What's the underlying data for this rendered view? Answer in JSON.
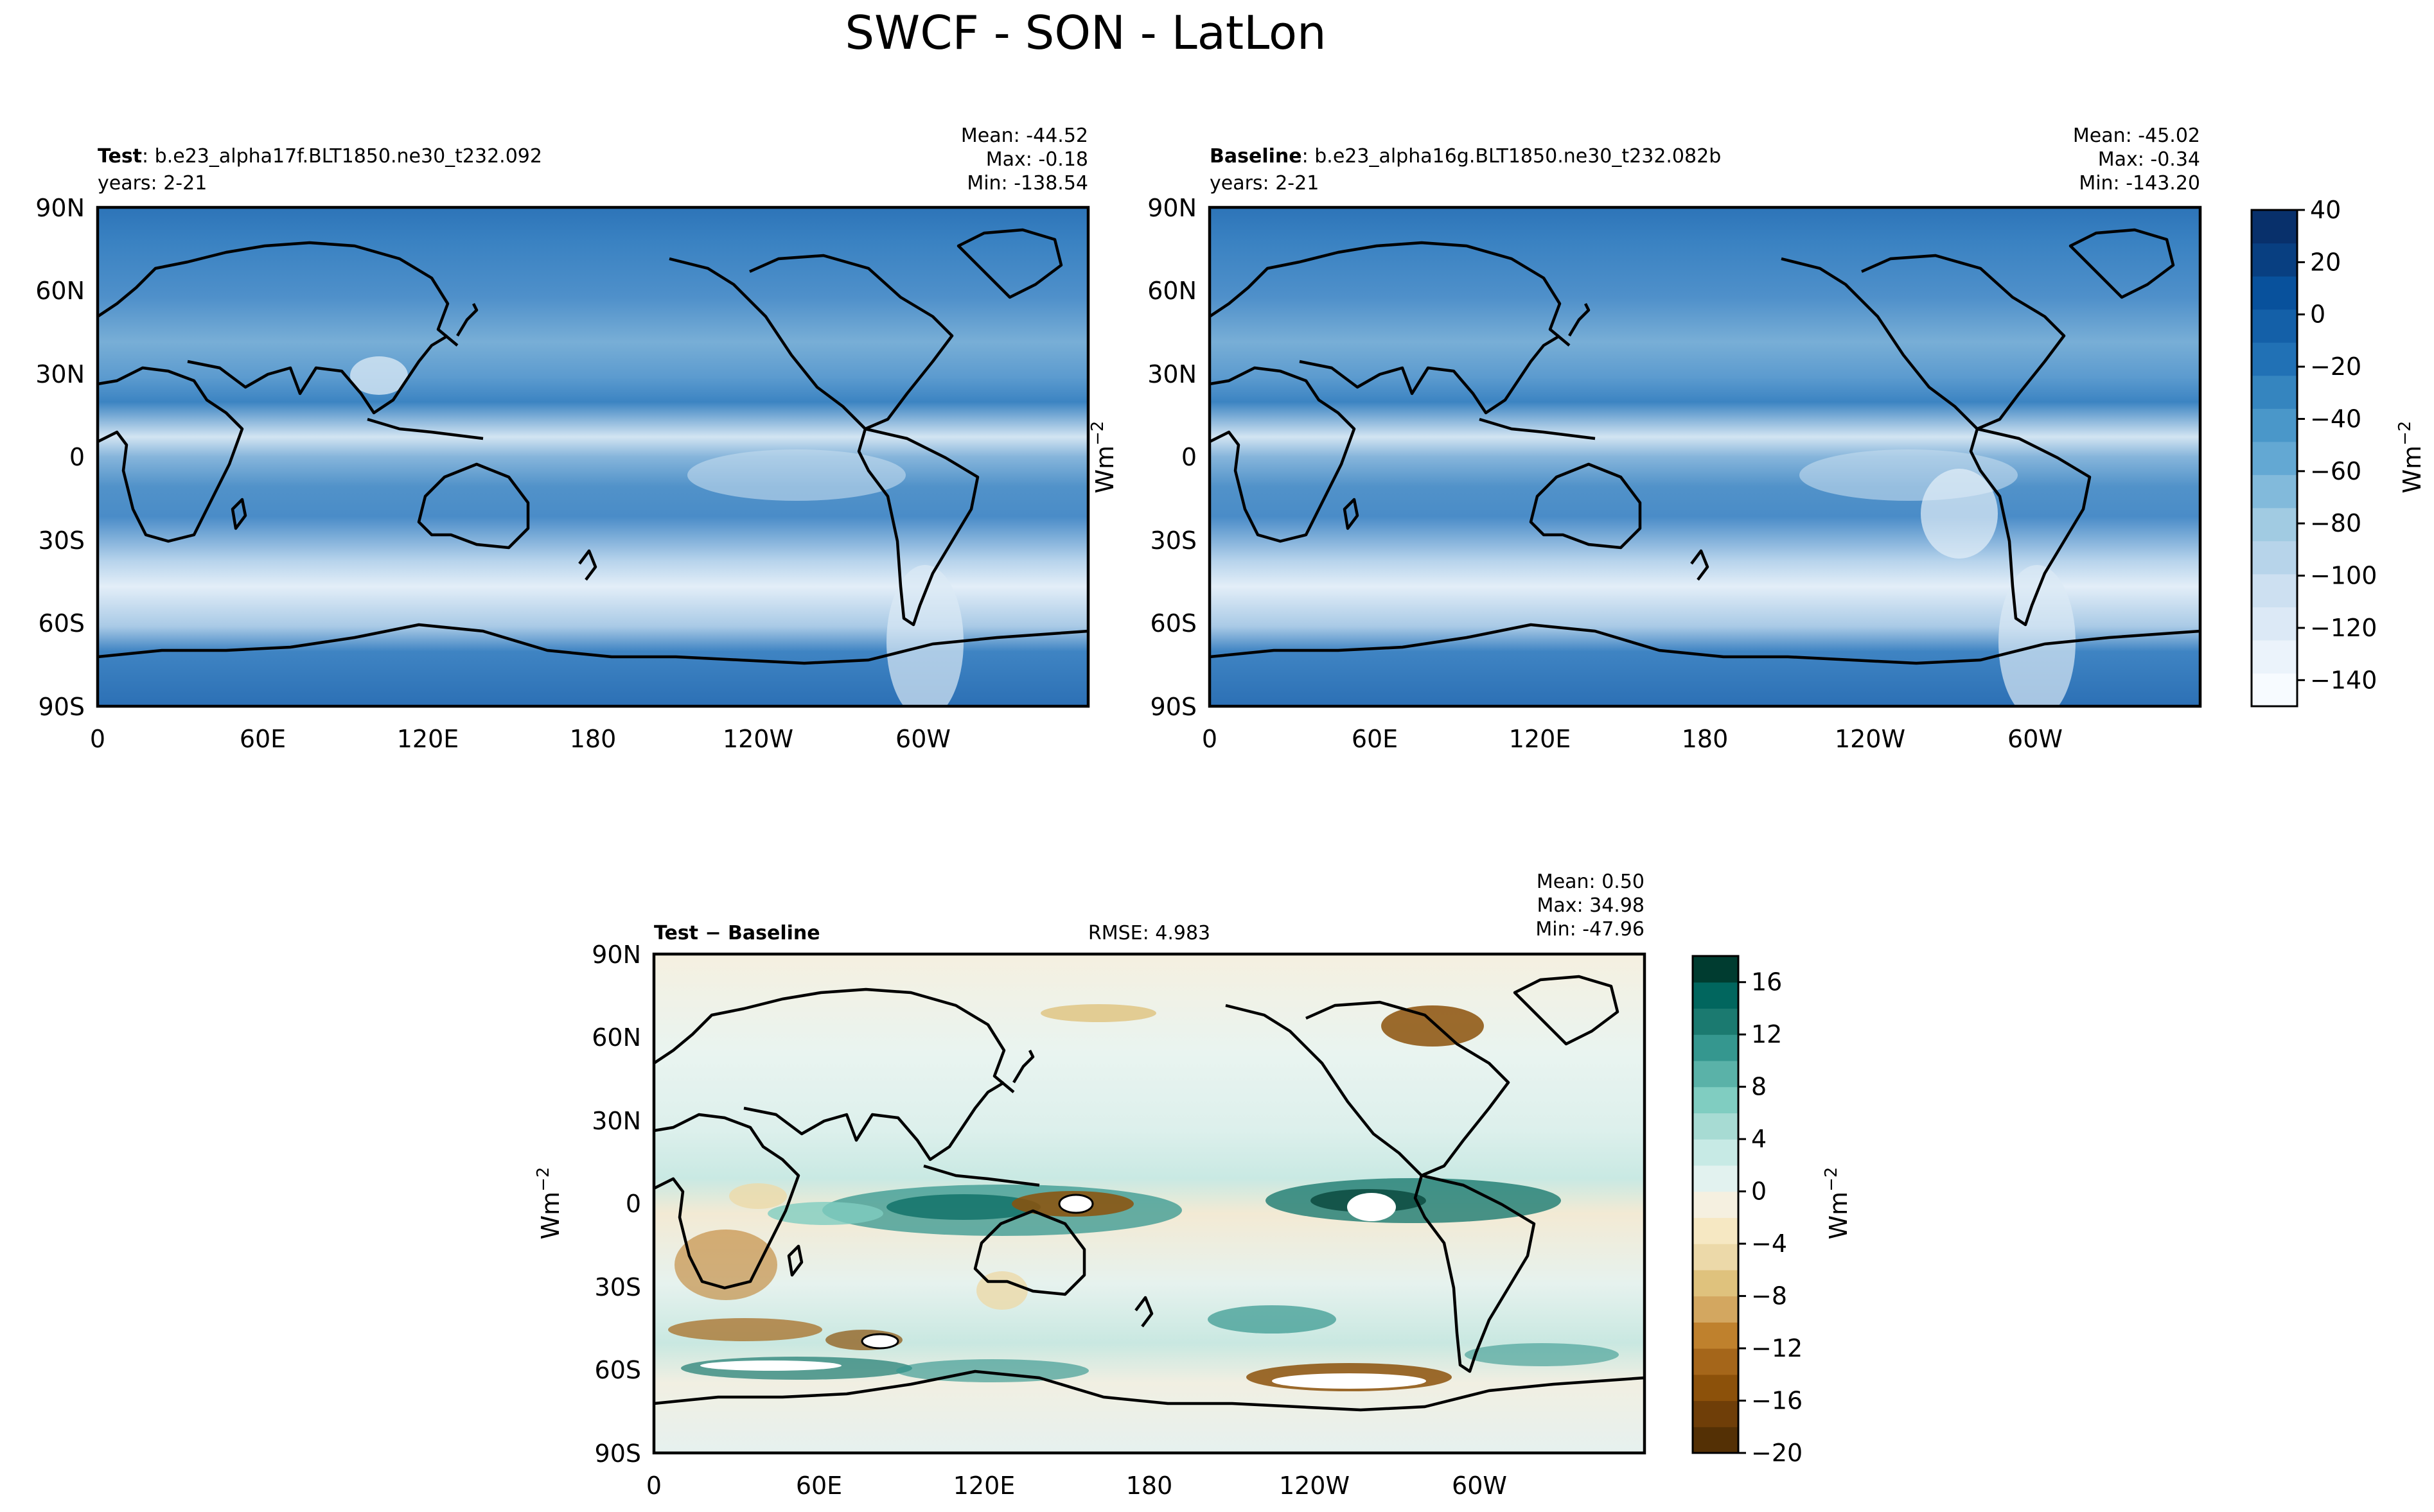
{
  "figure": {
    "title": "SWCF - SON - LatLon"
  },
  "panels": {
    "test": {
      "label_bold": "Test",
      "label_rest": ": b.e23_alpha17f.BLT1850.ne30_t232.092",
      "years": "years: 2-21",
      "stats": [
        "Mean: -44.52",
        "Max: -0.18",
        "Min: -138.54"
      ]
    },
    "baseline": {
      "label_bold": "Baseline",
      "label_rest": ": b.e23_alpha16g.BLT1850.ne30_t232.082b",
      "years": "years: 2-21",
      "stats": [
        "Mean: -45.02",
        "Max: -0.34",
        "Min: -143.20"
      ]
    },
    "diff": {
      "label_bold": "Test − Baseline",
      "rmse": "RMSE: 4.983",
      "stats": [
        "Mean:  0.50",
        "Max: 34.98",
        "Min: -47.96"
      ]
    }
  },
  "axes": {
    "lat_ticks": [
      "90N",
      "60N",
      "30N",
      "0",
      "30S",
      "60S",
      "90S"
    ],
    "lon_ticks": [
      "0",
      "60E",
      "120E",
      "180",
      "120W",
      "60W"
    ],
    "units": "Wm",
    "units_sup": "−2"
  },
  "colorbars": {
    "main": {
      "ticks": [
        "40",
        "20",
        "0",
        "−20",
        "−40",
        "−60",
        "−80",
        "−100",
        "−120",
        "−140"
      ],
      "range": [
        -150,
        40
      ],
      "colors": [
        "#f7fbff",
        "#ebf3fb",
        "#dce9f6",
        "#cde0f1",
        "#b7d4ea",
        "#a1cbe2",
        "#82badb",
        "#63a8d3",
        "#4a97c9",
        "#3585bf",
        "#2171b5",
        "#1460a8",
        "#08519c",
        "#083f81",
        "#08306b"
      ]
    },
    "diff": {
      "ticks": [
        "16",
        "12",
        "8",
        "4",
        "0",
        "−4",
        "−8",
        "−12",
        "−16",
        "−20"
      ],
      "range": [
        -20,
        18
      ],
      "colors": [
        "#543005",
        "#6f3e08",
        "#8c510a",
        "#a5661a",
        "#bf812d",
        "#d3a760",
        "#dfc27d",
        "#ecd9a9",
        "#f6e8c3",
        "#f5f0e0",
        "#e2f2ef",
        "#c7eae5",
        "#a7dbd3",
        "#80cdc1",
        "#5ab2a8",
        "#35978f",
        "#1b7a70",
        "#01665e",
        "#003c30"
      ]
    }
  }
}
